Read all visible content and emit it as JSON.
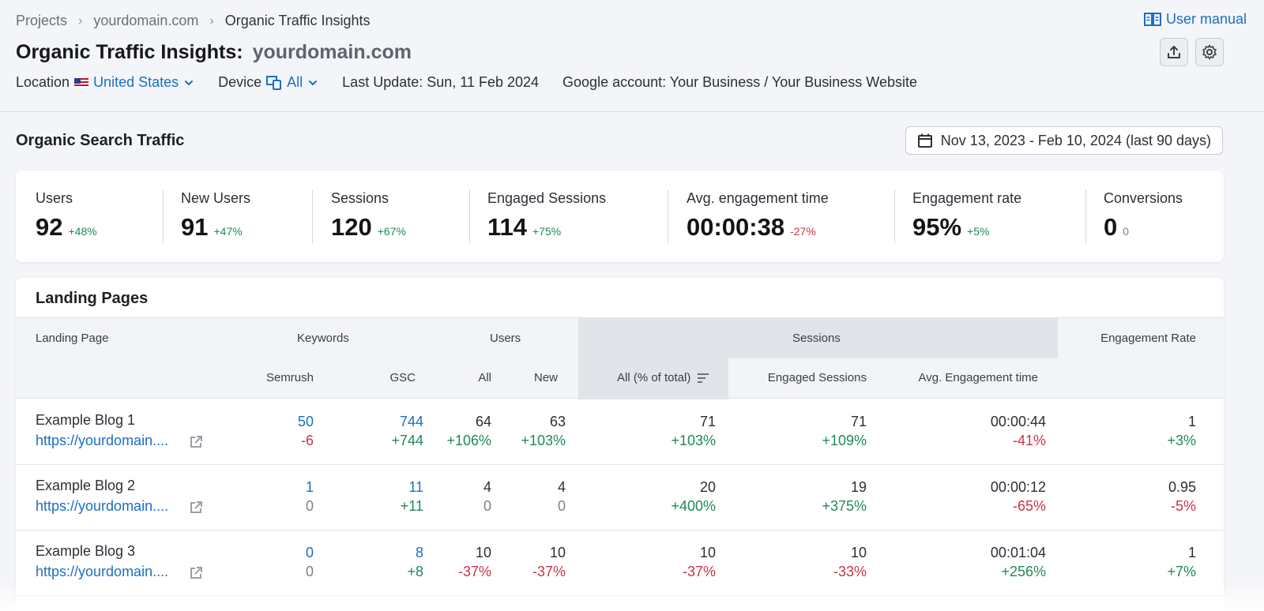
{
  "breadcrumb": {
    "items": [
      "Projects",
      "yourdomain.com",
      "Organic Traffic Insights"
    ]
  },
  "header": {
    "title": "Organic Traffic Insights:",
    "domain": "yourdomain.com",
    "user_manual": "User manual",
    "icons": [
      "book-icon",
      "export-icon",
      "gear-icon"
    ]
  },
  "meta": {
    "location_label": "Location",
    "location_value": "United States",
    "device_label": "Device",
    "device_value": "All",
    "last_update": "Last Update: Sun, 11 Feb 2024",
    "google_account": "Google account: Your Business / Your Business Website"
  },
  "organic": {
    "title": "Organic Search Traffic",
    "date_range": "Nov 13, 2023 - Feb 10, 2024 (last 90 days)"
  },
  "stats": [
    {
      "label": "Users",
      "value": "92",
      "delta": "+48%",
      "trend": "pos"
    },
    {
      "label": "New Users",
      "value": "91",
      "delta": "+47%",
      "trend": "pos"
    },
    {
      "label": "Sessions",
      "value": "120",
      "delta": "+67%",
      "trend": "pos"
    },
    {
      "label": "Engaged Sessions",
      "value": "114",
      "delta": "+75%",
      "trend": "pos"
    },
    {
      "label": "Avg. engagement time",
      "value": "00:00:38",
      "delta": "-27%",
      "trend": "neg"
    },
    {
      "label": "Engagement rate",
      "value": "95%",
      "delta": "+5%",
      "trend": "pos"
    },
    {
      "label": "Conversions",
      "value": "0",
      "delta": "0",
      "trend": "zero"
    }
  ],
  "landing": {
    "title": "Landing Pages",
    "headers": {
      "landing_page": "Landing Page",
      "keywords": "Keywords",
      "users": "Users",
      "sessions": "Sessions",
      "engagement_rate": "Engagement Rate",
      "semrush": "Semrush",
      "gsc": "GSC",
      "all": "All",
      "new": "New",
      "sessions_all": "All (% of total)",
      "engaged_sessions": "Engaged Sessions",
      "avg_engagement_time": "Avg. Engagement time"
    },
    "rows": [
      {
        "name": "Example Blog 1",
        "url": "https://yourdomain....",
        "semrush": "50",
        "semrush_d": "-6",
        "gsc": "744",
        "gsc_d": "+744",
        "users_all": "64",
        "users_all_d": "+106%",
        "users_new": "63",
        "users_new_d": "+103%",
        "sessions": "71",
        "sessions_d": "+103%",
        "engaged": "71",
        "engaged_d": "+109%",
        "avg_time": "00:00:44",
        "avg_time_d": "-41%",
        "eng_rate": "1",
        "eng_rate_d": "+3%"
      },
      {
        "name": "Example Blog 2",
        "url": "https://yourdomain....",
        "semrush": "1",
        "semrush_d": "0",
        "gsc": "11",
        "gsc_d": "+11",
        "users_all": "4",
        "users_all_d": "0",
        "users_new": "4",
        "users_new_d": "0",
        "sessions": "20",
        "sessions_d": "+400%",
        "engaged": "19",
        "engaged_d": "+375%",
        "avg_time": "00:00:12",
        "avg_time_d": "-65%",
        "eng_rate": "0.95",
        "eng_rate_d": "-5%"
      },
      {
        "name": "Example Blog 3",
        "url": "https://yourdomain....",
        "semrush": "0",
        "semrush_d": "0",
        "gsc": "8",
        "gsc_d": "+8",
        "users_all": "10",
        "users_all_d": "-37%",
        "users_new": "10",
        "users_new_d": "-37%",
        "sessions": "10",
        "sessions_d": "-37%",
        "engaged": "10",
        "engaged_d": "-33%",
        "avg_time": "00:01:04",
        "avg_time_d": "+256%",
        "eng_rate": "1",
        "eng_rate_d": "+7%"
      }
    ]
  },
  "colors": {
    "link": "#1a6fc4",
    "positive": "#1f8a56",
    "negative": "#c9334a",
    "neutral": "#7c818a"
  }
}
